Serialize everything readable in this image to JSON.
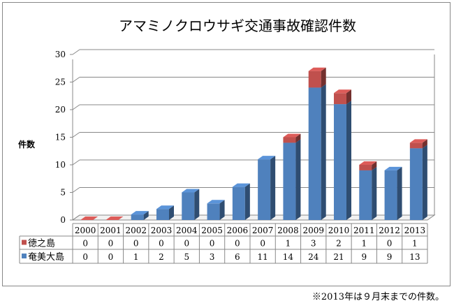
{
  "chart_data": {
    "type": "bar",
    "stacked": true,
    "title": "アマミノクロウサギ交通事故確認件数",
    "ylabel": "件数",
    "xlabel": "",
    "ylim": [
      0,
      30
    ],
    "yticks": [
      0,
      5,
      10,
      15,
      20,
      25,
      30
    ],
    "categories": [
      "2000",
      "2001",
      "2002",
      "2003",
      "2004",
      "2005",
      "2006",
      "2007",
      "2008",
      "2009",
      "2010",
      "2011",
      "2012",
      "2013"
    ],
    "series": [
      {
        "name": "奄美大島",
        "color": "#4f81bd",
        "values": [
          0,
          0,
          1,
          2,
          5,
          3,
          6,
          11,
          14,
          24,
          21,
          9,
          9,
          13
        ]
      },
      {
        "name": "徳之島",
        "color": "#c0504d",
        "values": [
          0,
          0,
          0,
          0,
          0,
          0,
          0,
          0,
          1,
          3,
          2,
          1,
          0,
          1
        ]
      }
    ],
    "table_rows_order": [
      "徳之島",
      "奄美大島"
    ],
    "grid": true,
    "legend": "data-table"
  },
  "footnote": "※2013年は９月末までの件数。"
}
